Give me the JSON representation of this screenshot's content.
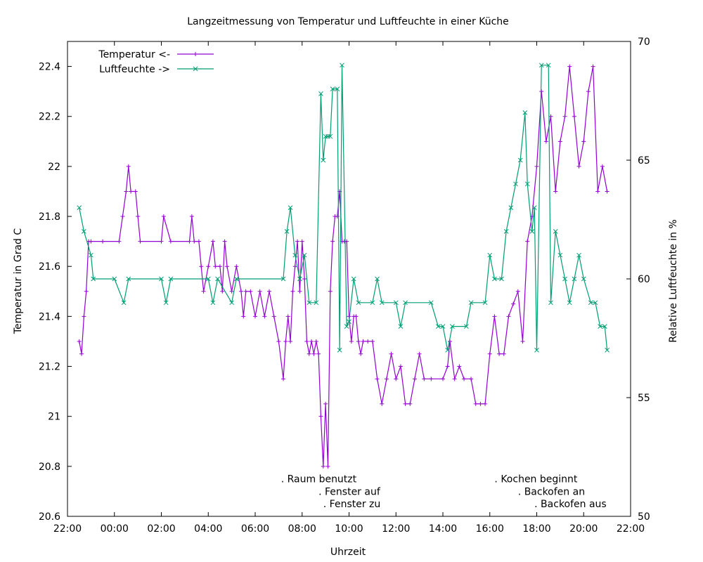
{
  "chart_data": {
    "type": "line",
    "title": "Langzeitmessung von Temperatur und Luftfeuchte in einer Küche",
    "xlabel": "Uhrzeit",
    "ylabel": "Temperatur in Grad C",
    "y2label": "Relative Luftfeuchte in %",
    "x_domain_hours": [
      22,
      46
    ],
    "ylim": [
      20.6,
      22.5
    ],
    "y2lim": [
      50,
      70
    ],
    "x_tick_labels": [
      "22:00",
      "00:00",
      "02:00",
      "04:00",
      "06:00",
      "08:00",
      "10:00",
      "12:00",
      "14:00",
      "16:00",
      "18:00",
      "20:00",
      "22:00"
    ],
    "y_tick_values": [
      20.6,
      20.8,
      21,
      21.2,
      21.4,
      21.6,
      21.8,
      22,
      22.2,
      22.4
    ],
    "y_tick_labels": [
      "20.6",
      "20.8",
      "21",
      "21.2",
      "21.4",
      "21.6",
      "21.8",
      "22",
      "22.2",
      "22.4"
    ],
    "y2_tick_values": [
      50,
      55,
      60,
      65,
      70
    ],
    "y2_tick_labels": [
      "50",
      "55",
      "60",
      "65",
      "70"
    ],
    "legend_position": "top-left",
    "annotations": [
      {
        "text": ". Raum benutzt",
        "x_hour": 31.1,
        "y": 20.75
      },
      {
        "text": ". Fenster auf",
        "x_hour": 32.7,
        "y": 20.7
      },
      {
        "text": ". Fenster zu",
        "x_hour": 32.9,
        "y": 20.65
      },
      {
        "text": ". Kochen beginnt",
        "x_hour": 40.2,
        "y": 20.75
      },
      {
        "text": ". Backofen an",
        "x_hour": 41.2,
        "y": 20.7
      },
      {
        "text": ". Backofen aus",
        "x_hour": 41.9,
        "y": 20.65
      }
    ],
    "series": [
      {
        "name": "Temperatur <-",
        "axis": "y",
        "color": "#9400d3",
        "marker": "plus",
        "points": [
          [
            22.5,
            21.3
          ],
          [
            22.6,
            21.25
          ],
          [
            22.7,
            21.4
          ],
          [
            22.8,
            21.5
          ],
          [
            22.9,
            21.7
          ],
          [
            23.0,
            21.7
          ],
          [
            23.5,
            21.7
          ],
          [
            24.2,
            21.7
          ],
          [
            24.35,
            21.8
          ],
          [
            24.5,
            21.9
          ],
          [
            24.6,
            22.0
          ],
          [
            24.7,
            21.9
          ],
          [
            24.9,
            21.9
          ],
          [
            25.0,
            21.8
          ],
          [
            25.1,
            21.7
          ],
          [
            26.0,
            21.7
          ],
          [
            26.1,
            21.8
          ],
          [
            26.4,
            21.7
          ],
          [
            27.2,
            21.7
          ],
          [
            27.3,
            21.8
          ],
          [
            27.4,
            21.7
          ],
          [
            27.6,
            21.7
          ],
          [
            27.7,
            21.6
          ],
          [
            27.8,
            21.5
          ],
          [
            28.0,
            21.6
          ],
          [
            28.2,
            21.7
          ],
          [
            28.3,
            21.6
          ],
          [
            28.5,
            21.6
          ],
          [
            28.6,
            21.5
          ],
          [
            28.7,
            21.7
          ],
          [
            28.8,
            21.6
          ],
          [
            29.0,
            21.5
          ],
          [
            29.2,
            21.6
          ],
          [
            29.4,
            21.5
          ],
          [
            29.5,
            21.4
          ],
          [
            29.6,
            21.5
          ],
          [
            29.8,
            21.5
          ],
          [
            30.0,
            21.4
          ],
          [
            30.2,
            21.5
          ],
          [
            30.4,
            21.4
          ],
          [
            30.6,
            21.5
          ],
          [
            30.8,
            21.4
          ],
          [
            31.0,
            21.3
          ],
          [
            31.2,
            21.15
          ],
          [
            31.3,
            21.3
          ],
          [
            31.4,
            21.4
          ],
          [
            31.5,
            21.3
          ],
          [
            31.6,
            21.5
          ],
          [
            31.7,
            21.6
          ],
          [
            31.8,
            21.7
          ],
          [
            31.9,
            21.5
          ],
          [
            32.0,
            21.7
          ],
          [
            32.1,
            21.55
          ],
          [
            32.2,
            21.3
          ],
          [
            32.3,
            21.25
          ],
          [
            32.4,
            21.3
          ],
          [
            32.5,
            21.25
          ],
          [
            32.6,
            21.3
          ],
          [
            32.7,
            21.25
          ],
          [
            32.8,
            21.0
          ],
          [
            32.9,
            20.8
          ],
          [
            33.0,
            21.05
          ],
          [
            33.1,
            20.8
          ],
          [
            33.2,
            21.5
          ],
          [
            33.3,
            21.7
          ],
          [
            33.4,
            21.8
          ],
          [
            33.5,
            21.8
          ],
          [
            33.6,
            21.9
          ],
          [
            33.7,
            21.7
          ],
          [
            33.8,
            21.7
          ],
          [
            33.9,
            21.7
          ],
          [
            34.0,
            21.4
          ],
          [
            34.1,
            21.3
          ],
          [
            34.2,
            21.4
          ],
          [
            34.3,
            21.4
          ],
          [
            34.4,
            21.3
          ],
          [
            34.5,
            21.25
          ],
          [
            34.6,
            21.3
          ],
          [
            34.8,
            21.3
          ],
          [
            35.0,
            21.3
          ],
          [
            35.2,
            21.15
          ],
          [
            35.4,
            21.05
          ],
          [
            35.6,
            21.15
          ],
          [
            35.8,
            21.25
          ],
          [
            36.0,
            21.15
          ],
          [
            36.2,
            21.2
          ],
          [
            36.4,
            21.05
          ],
          [
            36.6,
            21.05
          ],
          [
            36.8,
            21.15
          ],
          [
            37.0,
            21.25
          ],
          [
            37.2,
            21.15
          ],
          [
            37.5,
            21.15
          ],
          [
            38.0,
            21.15
          ],
          [
            38.2,
            21.2
          ],
          [
            38.3,
            21.3
          ],
          [
            38.5,
            21.15
          ],
          [
            38.7,
            21.2
          ],
          [
            38.9,
            21.15
          ],
          [
            39.2,
            21.15
          ],
          [
            39.4,
            21.05
          ],
          [
            39.6,
            21.05
          ],
          [
            39.8,
            21.05
          ],
          [
            40.0,
            21.25
          ],
          [
            40.2,
            21.4
          ],
          [
            40.4,
            21.25
          ],
          [
            40.6,
            21.25
          ],
          [
            40.8,
            21.4
          ],
          [
            41.0,
            21.45
          ],
          [
            41.2,
            21.5
          ],
          [
            41.4,
            21.3
          ],
          [
            41.6,
            21.7
          ],
          [
            41.8,
            21.8
          ],
          [
            42.0,
            22.0
          ],
          [
            42.2,
            22.3
          ],
          [
            42.4,
            22.1
          ],
          [
            42.6,
            22.2
          ],
          [
            42.8,
            21.9
          ],
          [
            43.0,
            22.1
          ],
          [
            43.2,
            22.2
          ],
          [
            43.4,
            22.4
          ],
          [
            43.6,
            22.2
          ],
          [
            43.8,
            22.0
          ],
          [
            44.0,
            22.1
          ],
          [
            44.2,
            22.3
          ],
          [
            44.4,
            22.4
          ],
          [
            44.6,
            21.9
          ],
          [
            44.8,
            22.0
          ],
          [
            45.0,
            21.9
          ]
        ]
      },
      {
        "name": "Luftfeuchte ->",
        "axis": "y2",
        "color": "#009e73",
        "marker": "cross",
        "points": [
          [
            22.5,
            63
          ],
          [
            22.7,
            62
          ],
          [
            23.0,
            61
          ],
          [
            23.1,
            60
          ],
          [
            24.0,
            60
          ],
          [
            24.4,
            59
          ],
          [
            24.6,
            60
          ],
          [
            26.0,
            60
          ],
          [
            26.2,
            59
          ],
          [
            26.4,
            60
          ],
          [
            28.0,
            60
          ],
          [
            28.2,
            59
          ],
          [
            28.4,
            60
          ],
          [
            29.0,
            59
          ],
          [
            29.2,
            60
          ],
          [
            31.2,
            60
          ],
          [
            31.35,
            62
          ],
          [
            31.5,
            63
          ],
          [
            31.7,
            61
          ],
          [
            31.9,
            60
          ],
          [
            32.1,
            61
          ],
          [
            32.3,
            59
          ],
          [
            32.6,
            59
          ],
          [
            32.8,
            67.8
          ],
          [
            32.9,
            65
          ],
          [
            33.0,
            66
          ],
          [
            33.1,
            66
          ],
          [
            33.2,
            66
          ],
          [
            33.3,
            68
          ],
          [
            33.5,
            68
          ],
          [
            33.6,
            57
          ],
          [
            33.7,
            69
          ],
          [
            33.9,
            58
          ],
          [
            34.0,
            58.2
          ],
          [
            34.2,
            60
          ],
          [
            34.4,
            59
          ],
          [
            35.0,
            59
          ],
          [
            35.2,
            60
          ],
          [
            35.4,
            59
          ],
          [
            36.0,
            59
          ],
          [
            36.2,
            58
          ],
          [
            36.4,
            59
          ],
          [
            37.5,
            59
          ],
          [
            37.8,
            58
          ],
          [
            38.0,
            58
          ],
          [
            38.2,
            57
          ],
          [
            38.4,
            58
          ],
          [
            39.0,
            58
          ],
          [
            39.2,
            59
          ],
          [
            39.8,
            59
          ],
          [
            40.0,
            61
          ],
          [
            40.2,
            60
          ],
          [
            40.5,
            60
          ],
          [
            40.7,
            62
          ],
          [
            40.9,
            63
          ],
          [
            41.1,
            64
          ],
          [
            41.3,
            65
          ],
          [
            41.5,
            67
          ],
          [
            41.6,
            64
          ],
          [
            41.8,
            62
          ],
          [
            41.9,
            63
          ],
          [
            42.0,
            57
          ],
          [
            42.2,
            69
          ],
          [
            42.5,
            69
          ],
          [
            42.6,
            59
          ],
          [
            42.8,
            62
          ],
          [
            43.0,
            61
          ],
          [
            43.2,
            60
          ],
          [
            43.4,
            59
          ],
          [
            43.6,
            60
          ],
          [
            43.8,
            61
          ],
          [
            44.0,
            60
          ],
          [
            44.3,
            59
          ],
          [
            44.5,
            59
          ],
          [
            44.7,
            58
          ],
          [
            44.9,
            58
          ],
          [
            45.0,
            57
          ]
        ]
      }
    ]
  }
}
